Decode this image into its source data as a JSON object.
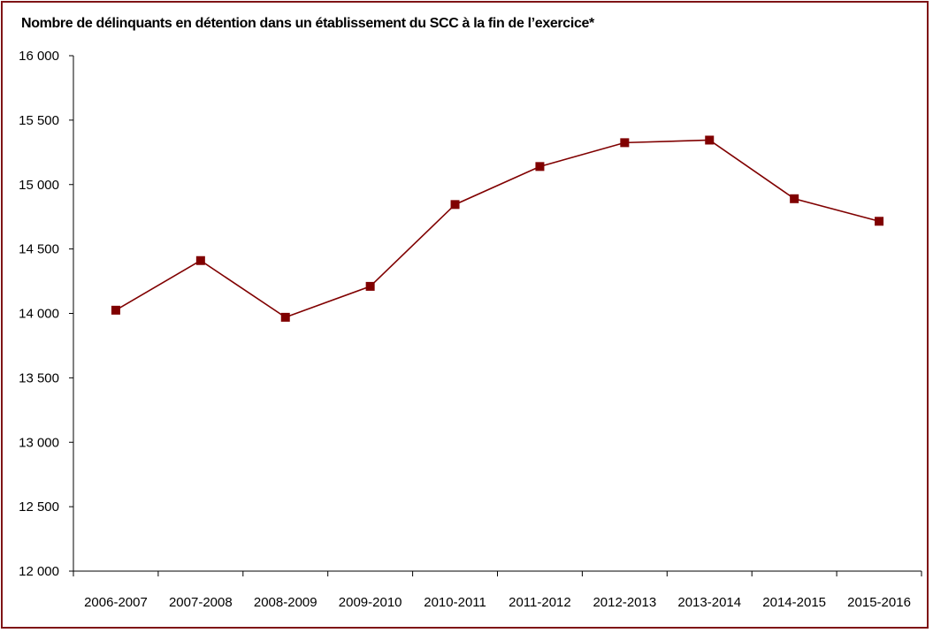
{
  "chart_data": {
    "type": "line",
    "title": "Nombre de délinquants en détention dans un établissement du SCC à la fin de l’exercice*",
    "xlabel": "",
    "ylabel": "",
    "categories": [
      "2006-2007",
      "2007-2008",
      "2008-2009",
      "2009-2010",
      "2010-2011",
      "2011-2012",
      "2012-2013",
      "2013-2014",
      "2014-2015",
      "2015-2016"
    ],
    "series": [
      {
        "values": [
          14025,
          14410,
          13970,
          14210,
          14845,
          15140,
          15325,
          15345,
          14890,
          14715
        ],
        "color": "#800000",
        "marker": "square"
      }
    ],
    "ylim": [
      12000,
      16000
    ],
    "yticks": [
      12000,
      12500,
      13000,
      13500,
      14000,
      14500,
      15000,
      15500,
      16000
    ],
    "ytick_labels": [
      "12 000",
      "12 500",
      "13 000",
      "13 500",
      "14 000",
      "14 500",
      "15 000",
      "15 500",
      "16 000"
    ],
    "grid": false,
    "legend": "none",
    "frame_color": "#7f1416"
  }
}
